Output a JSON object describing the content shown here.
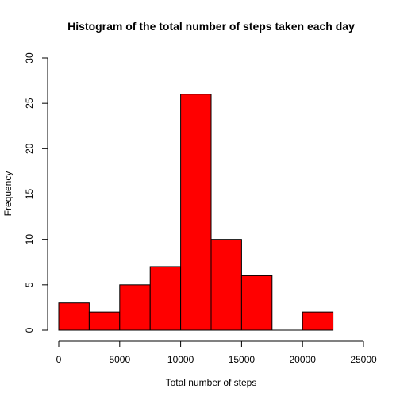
{
  "chart_data": {
    "type": "bar",
    "title": "Histogram of the total number of steps taken each day",
    "xlabel": "Total number of steps",
    "ylabel": "Frequency",
    "bin_edges": [
      0,
      2500,
      5000,
      7500,
      10000,
      12500,
      15000,
      17500,
      20000,
      22500
    ],
    "values": [
      3,
      2,
      5,
      7,
      26,
      10,
      6,
      0,
      2
    ],
    "xlim": [
      0,
      25000
    ],
    "ylim": [
      0,
      30
    ],
    "x_ticks": [
      0,
      5000,
      10000,
      15000,
      20000,
      25000
    ],
    "y_ticks": [
      0,
      5,
      10,
      15,
      20,
      25,
      30
    ],
    "bar_color": "#ff0000",
    "grid": false
  }
}
